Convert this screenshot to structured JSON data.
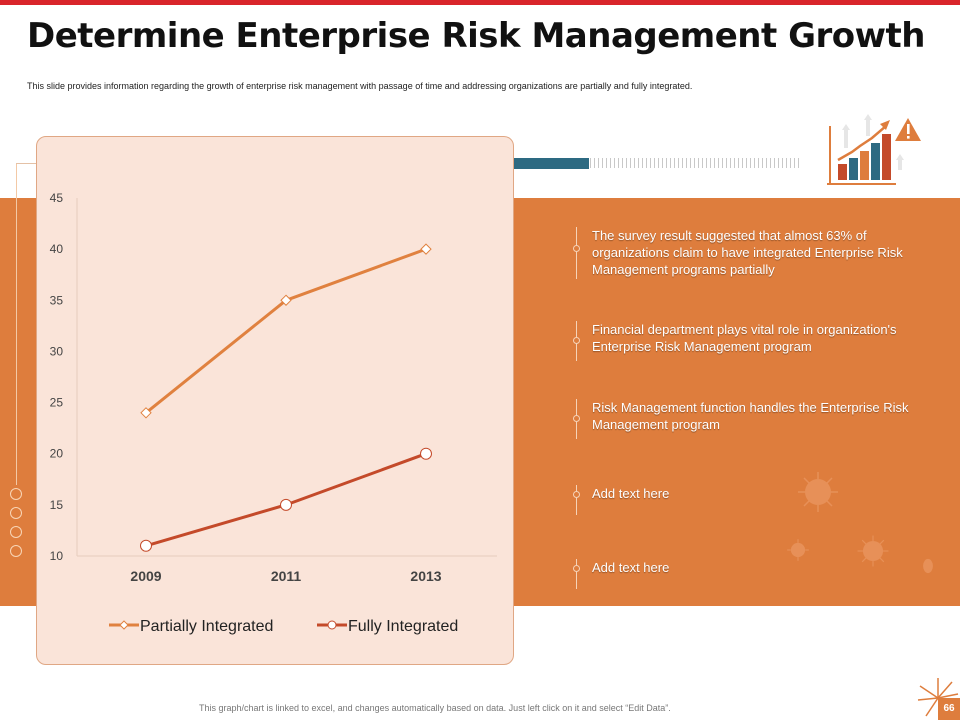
{
  "title": "Determine Enterprise Risk Management Growth",
  "subtitle": "This slide provides information regarding the growth of enterprise risk management with passage of time and addressing organizations are partially and fully integrated.",
  "colors": {
    "accent_red": "#d9252b",
    "orange_band": "#de7d3d",
    "teal": "#2d6a82",
    "panel_bg": "#fae4d9",
    "series_partial": "#e0813f",
    "series_fully": "#c44a2a"
  },
  "chart_data": {
    "type": "line",
    "title": "",
    "xlabel": "",
    "ylabel": "",
    "x": [
      "2009",
      "2011",
      "2013"
    ],
    "ylim": [
      10,
      45
    ],
    "yticks": [
      10,
      15,
      20,
      25,
      30,
      35,
      40,
      45
    ],
    "grid": false,
    "legend_position": "bottom",
    "series": [
      {
        "name": "Partially Integrated",
        "values": [
          24,
          35,
          40
        ],
        "marker": "diamond",
        "color": "#e0813f"
      },
      {
        "name": "Fully Integrated",
        "values": [
          11,
          15,
          20
        ],
        "marker": "circle",
        "color": "#c44a2a"
      }
    ]
  },
  "bullets": [
    {
      "text": "The survey result suggested that almost 63% of organizations claim to have integrated Enterprise Risk Management programs partially"
    },
    {
      "text": "Financial department plays vital role in organization's Enterprise Risk Management program"
    },
    {
      "text": "Risk Management function handles the Enterprise Risk Management program"
    },
    {
      "text": "Add text here"
    },
    {
      "text": "Add text here"
    }
  ],
  "icons": {
    "growth": "growth-chart-icon",
    "warning": "warning-icon",
    "decor": "virus-icon"
  },
  "footer": "This graph/chart is linked to excel, and changes automatically based on data. Just left click on it and select “Edit Data”.",
  "page_number": "66"
}
